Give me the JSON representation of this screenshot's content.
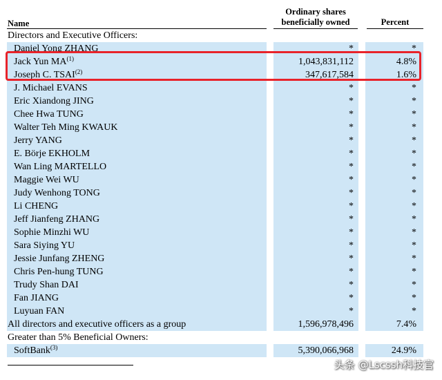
{
  "header": {
    "name_label": "Name",
    "shares_line1": "Ordinary shares",
    "shares_line2": "beneficially owned",
    "percent_label": "Percent"
  },
  "rows": [
    {
      "name": "Directors and Executive Officers:",
      "sup": "",
      "shares": "",
      "percent": "",
      "section": true
    },
    {
      "name": "Daniel Yong ZHANG",
      "sup": "",
      "shares": "*",
      "percent": "*"
    },
    {
      "name": "Jack Yun MA",
      "sup": "(1)",
      "shares": "1,043,831,112",
      "percent": "4.8%"
    },
    {
      "name": "Joseph C. TSAI",
      "sup": "(2)",
      "shares": "347,617,584",
      "percent": "1.6%"
    },
    {
      "name": "J. Michael EVANS",
      "sup": "",
      "shares": "*",
      "percent": "*"
    },
    {
      "name": "Eric Xiandong JING",
      "sup": "",
      "shares": "*",
      "percent": "*"
    },
    {
      "name": "Chee Hwa TUNG",
      "sup": "",
      "shares": "*",
      "percent": "*"
    },
    {
      "name": "Walter Teh Ming KWAUK",
      "sup": "",
      "shares": "*",
      "percent": "*"
    },
    {
      "name": "Jerry YANG",
      "sup": "",
      "shares": "*",
      "percent": "*"
    },
    {
      "name": "E. Börje EKHOLM",
      "sup": "",
      "shares": "*",
      "percent": "*"
    },
    {
      "name": "Wan Ling MARTELLO",
      "sup": "",
      "shares": "*",
      "percent": "*"
    },
    {
      "name": "Maggie Wei WU",
      "sup": "",
      "shares": "*",
      "percent": "*"
    },
    {
      "name": "Judy Wenhong TONG",
      "sup": "",
      "shares": "*",
      "percent": "*"
    },
    {
      "name": "Li CHENG",
      "sup": "",
      "shares": "*",
      "percent": "*"
    },
    {
      "name": "Jeff Jianfeng ZHANG",
      "sup": "",
      "shares": "*",
      "percent": "*"
    },
    {
      "name": "Sophie Minzhi WU",
      "sup": "",
      "shares": "*",
      "percent": "*"
    },
    {
      "name": "Sara Siying YU",
      "sup": "",
      "shares": "*",
      "percent": "*"
    },
    {
      "name": "Jessie Junfang ZHENG",
      "sup": "",
      "shares": "*",
      "percent": "*"
    },
    {
      "name": "Chris Pen-hung TUNG",
      "sup": "",
      "shares": "*",
      "percent": "*"
    },
    {
      "name": "Trudy Shan DAI",
      "sup": "",
      "shares": "*",
      "percent": "*"
    },
    {
      "name": "Fan JIANG",
      "sup": "",
      "shares": "*",
      "percent": "*"
    },
    {
      "name": "Luyuan FAN",
      "sup": "",
      "shares": "*",
      "percent": "*"
    },
    {
      "name": "All directors and executive officers as a group",
      "sup": "",
      "shares": "1,596,978,496",
      "percent": "7.4%",
      "section": true,
      "plain": true
    },
    {
      "name": "Greater than 5% Beneficial Owners:",
      "sup": "",
      "shares": "",
      "percent": "",
      "section": true
    },
    {
      "name": "SoftBank",
      "sup": "(3)",
      "shares": "5,390,066,968",
      "percent": "24.9%"
    }
  ],
  "watermark": "头条 @Lscssh科技官",
  "colors": {
    "row_fill": "#cfe6f6",
    "highlight_border": "#e8232a"
  }
}
